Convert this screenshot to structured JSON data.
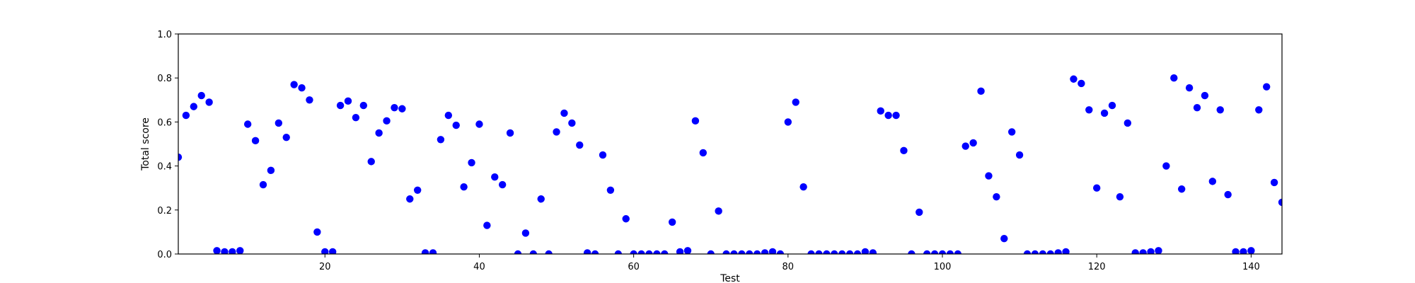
{
  "chart_data": {
    "type": "scatter",
    "title": "",
    "xlabel": "Test",
    "ylabel": "Total score",
    "xlim": [
      1,
      144
    ],
    "ylim": [
      0.0,
      1.0
    ],
    "x_ticks": [
      20,
      40,
      60,
      80,
      100,
      120,
      140
    ],
    "x_tick_labels": [
      "20",
      "40",
      "60",
      "80",
      "100",
      "120",
      "140"
    ],
    "y_ticks": [
      0.0,
      0.2,
      0.4,
      0.6,
      0.8,
      1.0
    ],
    "y_tick_labels": [
      "0.0",
      "0.2",
      "0.4",
      "0.6",
      "0.8",
      "1.0"
    ],
    "grid": false,
    "marker_color": "#0000ff",
    "series": [
      {
        "x": [
          1,
          2,
          3,
          4,
          5,
          6,
          7,
          8,
          9,
          10,
          11,
          12,
          13,
          14,
          15,
          16,
          17,
          18,
          19,
          20,
          21,
          22,
          23,
          24,
          25,
          26,
          27,
          28,
          29,
          30,
          31,
          32,
          33,
          34,
          35,
          36,
          37,
          38,
          39,
          40,
          41,
          42,
          43,
          44,
          45,
          46,
          47,
          48,
          49,
          50,
          51,
          52,
          53,
          54,
          55,
          56,
          57,
          58,
          59,
          60,
          61,
          62,
          63,
          64,
          65,
          66,
          67,
          68,
          69,
          70,
          71,
          72,
          73,
          74,
          75,
          76,
          77,
          78,
          79,
          80,
          81,
          82,
          83,
          84,
          85,
          86,
          87,
          88,
          89,
          90,
          91,
          92,
          93,
          94,
          95,
          96,
          97,
          98,
          99,
          100,
          101,
          102,
          103,
          104,
          105,
          106,
          107,
          108,
          109,
          110,
          111,
          112,
          113,
          114,
          115,
          116,
          117,
          118,
          119,
          120,
          121,
          122,
          123,
          124,
          125,
          126,
          127,
          128,
          129,
          130,
          131,
          132,
          133,
          134,
          135,
          136,
          137,
          138,
          139,
          140,
          141,
          142,
          143,
          144
        ],
        "y": [
          0.44,
          0.63,
          0.67,
          0.72,
          0.69,
          0.015,
          0.01,
          0.01,
          0.015,
          0.59,
          0.515,
          0.315,
          0.38,
          0.595,
          0.53,
          0.77,
          0.755,
          0.7,
          0.1,
          0.01,
          0.01,
          0.675,
          0.695,
          0.62,
          0.675,
          0.42,
          0.55,
          0.605,
          0.665,
          0.66,
          0.25,
          0.29,
          0.005,
          0.005,
          0.52,
          0.63,
          0.585,
          0.305,
          0.415,
          0.59,
          0.13,
          0.35,
          0.315,
          0.55,
          0.0,
          0.095,
          0.0,
          0.25,
          0.0,
          0.555,
          0.64,
          0.595,
          0.495,
          0.005,
          0.0,
          0.45,
          0.29,
          0.0,
          0.16,
          0.0,
          0.0,
          0.0,
          0.0,
          0.0,
          0.145,
          0.01,
          0.015,
          0.605,
          0.46,
          0.0,
          0.195,
          0.0,
          0.0,
          0.0,
          0.0,
          0.0,
          0.005,
          0.01,
          0.0,
          0.6,
          0.69,
          0.305,
          0.0,
          0.0,
          0.0,
          0.0,
          0.0,
          0.0,
          0.0,
          0.01,
          0.005,
          0.65,
          0.63,
          0.63,
          0.47,
          0.0,
          0.19,
          0.0,
          0.0,
          0.0,
          0.0,
          0.0,
          0.49,
          0.505,
          0.74,
          0.355,
          0.26,
          0.07,
          0.555,
          0.45,
          0.0,
          0.0,
          0.0,
          0.0,
          0.005,
          0.01,
          0.795,
          0.775,
          0.655,
          0.3,
          0.64,
          0.675,
          0.26,
          0.595,
          0.005,
          0.005,
          0.01,
          0.015,
          0.4,
          0.8,
          0.295,
          0.755,
          0.665,
          0.72,
          0.33,
          0.655,
          0.27,
          0.01,
          0.01,
          0.015,
          0.655,
          0.76,
          0.325,
          0.235
        ]
      }
    ]
  }
}
